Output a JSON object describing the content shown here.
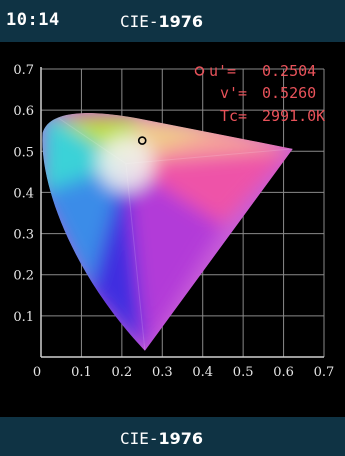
{
  "status_bar": {
    "time": "10:14"
  },
  "header": {
    "title_prefix": "CIE-",
    "title_number": "1976"
  },
  "footer": {
    "title_prefix": "CIE-",
    "title_number": "1976"
  },
  "readout": {
    "u_label": "u'=",
    "u_value": "0.2504",
    "v_label": "v'=",
    "v_value": "0.5260",
    "tc_label": "Tc=",
    "tc_value": "2991.0K",
    "accent_color": "#e8525a"
  },
  "chart_data": {
    "type": "scatter",
    "title": "",
    "xlabel": "",
    "ylabel": "",
    "xlim": [
      0,
      0.7
    ],
    "ylim": [
      0,
      0.7
    ],
    "x_ticks": [
      "0",
      "0.1",
      "0.2",
      "0.3",
      "0.4",
      "0.5",
      "0.6",
      "0.7"
    ],
    "y_ticks": [
      "0.1",
      "0.2",
      "0.3",
      "0.4",
      "0.5",
      "0.6",
      "0.7"
    ],
    "grid": true,
    "measured_point": {
      "u": 0.2504,
      "v": 0.526
    },
    "gamut_vertices": {
      "red": {
        "u": 0.623,
        "v": 0.506
      },
      "green": {
        "u": 0.04,
        "v": 0.583
      },
      "blue": {
        "u": 0.257,
        "v": 0.015
      }
    }
  }
}
